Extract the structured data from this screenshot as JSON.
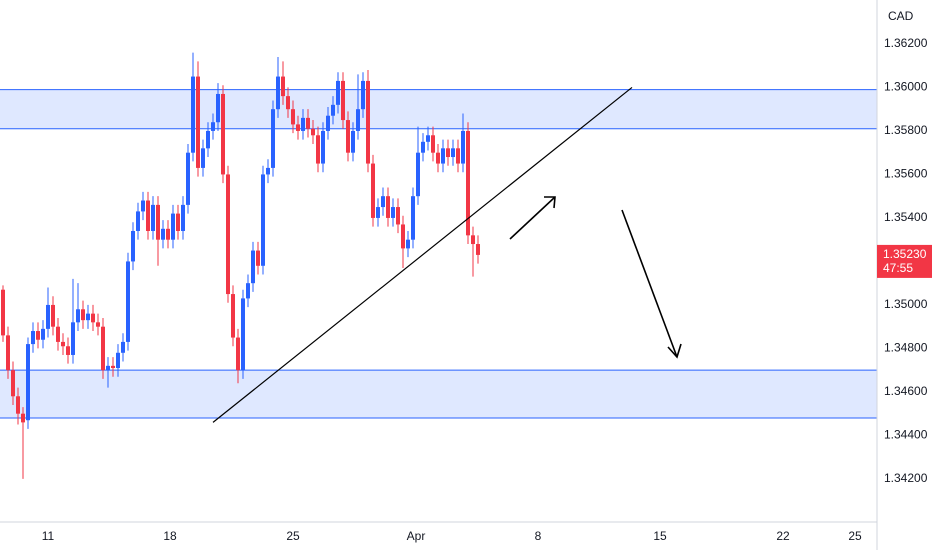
{
  "chart_data": {
    "type": "candlestick",
    "currency": "CAD",
    "up_color": "#2962ff",
    "down_color": "#f23645",
    "zone_color": "#2962ff",
    "xlim": [
      -0.6,
      174.8
    ],
    "ylim": [
      1.34002,
      1.36402
    ],
    "grid": false,
    "xticks": [
      {
        "value": 9.0,
        "label": "11"
      },
      {
        "value": 33.4,
        "label": "18"
      },
      {
        "value": 58.0,
        "label": "25"
      },
      {
        "value": 82.6,
        "label": "Apr"
      },
      {
        "value": 107.0,
        "label": "8"
      },
      {
        "value": 131.4,
        "label": "15"
      },
      {
        "value": 156.0,
        "label": "22"
      },
      {
        "value": 170.4,
        "label": "25"
      }
    ],
    "yticks": [
      {
        "value": 1.362,
        "label": "1.36200"
      },
      {
        "value": 1.36,
        "label": "1.36000"
      },
      {
        "value": 1.358,
        "label": "1.35800"
      },
      {
        "value": 1.356,
        "label": "1.35600"
      },
      {
        "value": 1.354,
        "label": "1.35400"
      },
      {
        "value": 1.35,
        "label": "1.35000"
      },
      {
        "value": 1.348,
        "label": "1.34800"
      },
      {
        "value": 1.346,
        "label": "1.34600"
      },
      {
        "value": 1.344,
        "label": "1.34400"
      },
      {
        "value": 1.342,
        "label": "1.34200"
      }
    ],
    "last_price": {
      "value": 1.3523,
      "label": "1.35230"
    },
    "countdown": "47:55",
    "zones": [
      [
        1.3581,
        1.3599
      ],
      [
        1.3448,
        1.347
      ]
    ],
    "trendline": {
      "x": [
        42.0,
        125.8
      ],
      "y": [
        1.3446,
        1.36
      ]
    },
    "open": [
      1.3507,
      1.3486,
      1.347,
      1.3458,
      1.345,
      1.3447,
      1.3482,
      1.3488,
      1.3484,
      1.3489,
      1.35,
      1.349,
      1.3483,
      1.3481,
      1.3477,
      1.3492,
      1.3498,
      1.3493,
      1.3496,
      1.3492,
      1.349,
      1.347,
      1.3472,
      1.3471,
      1.3478,
      1.3483,
      1.352,
      1.3534,
      1.3543,
      1.3548,
      1.3534,
      1.3546,
      1.353,
      1.3535,
      1.353,
      1.3542,
      1.3534,
      1.3546,
      1.357,
      1.3605,
      1.3563,
      1.3572,
      1.358,
      1.3584,
      1.3597,
      1.356,
      1.3505,
      1.3485,
      1.347,
      1.3503,
      1.351,
      1.3525,
      1.3518,
      1.356,
      1.3563,
      1.359,
      1.3605,
      1.3596,
      1.359,
      1.3583,
      1.358,
      1.3586,
      1.3581,
      1.3578,
      1.3565,
      1.358,
      1.3587,
      1.3592,
      1.3603,
      1.3585,
      1.357,
      1.358,
      1.359,
      1.3603,
      1.3565,
      1.354,
      1.3545,
      1.355,
      1.354,
      1.3545,
      1.3537,
      1.3526,
      1.353,
      1.355,
      1.357,
      1.3575,
      1.3578,
      1.357,
      1.3565,
      1.3572,
      1.3568,
      1.3572,
      1.3565,
      1.358,
      1.3532,
      1.3528
    ],
    "high": [
      1.3509,
      1.349,
      1.3474,
      1.3462,
      1.3453,
      1.3485,
      1.3492,
      1.3492,
      1.3493,
      1.3508,
      1.3504,
      1.3494,
      1.3487,
      1.3485,
      1.3512,
      1.351,
      1.3502,
      1.35,
      1.35,
      1.3496,
      1.3494,
      1.3476,
      1.3476,
      1.3482,
      1.3487,
      1.3524,
      1.3538,
      1.3547,
      1.3552,
      1.3552,
      1.355,
      1.355,
      1.3539,
      1.3539,
      1.3546,
      1.3546,
      1.355,
      1.3574,
      1.3616,
      1.3612,
      1.3576,
      1.3584,
      1.3588,
      1.3602,
      1.3601,
      1.3564,
      1.3509,
      1.3489,
      1.3507,
      1.3514,
      1.3529,
      1.3529,
      1.3564,
      1.3567,
      1.3594,
      1.3614,
      1.3612,
      1.36,
      1.3594,
      1.3587,
      1.359,
      1.359,
      1.3585,
      1.3582,
      1.3584,
      1.3591,
      1.3596,
      1.3607,
      1.3607,
      1.3589,
      1.3584,
      1.3606,
      1.3607,
      1.3608,
      1.3569,
      1.3549,
      1.3554,
      1.3554,
      1.3549,
      1.3549,
      1.3541,
      1.3534,
      1.3554,
      1.3582,
      1.3579,
      1.3582,
      1.3582,
      1.3574,
      1.3576,
      1.3576,
      1.3576,
      1.3576,
      1.3588,
      1.3584,
      1.3536,
      1.3532
    ],
    "low": [
      1.3483,
      1.3466,
      1.3454,
      1.3445,
      1.342,
      1.3443,
      1.3478,
      1.348,
      1.348,
      1.3485,
      1.3486,
      1.3479,
      1.3477,
      1.3473,
      1.3473,
      1.3488,
      1.3489,
      1.3489,
      1.3488,
      1.3486,
      1.3466,
      1.3462,
      1.3467,
      1.3467,
      1.3474,
      1.3479,
      1.3516,
      1.353,
      1.3539,
      1.353,
      1.353,
      1.3518,
      1.3526,
      1.3526,
      1.3526,
      1.353,
      1.353,
      1.3542,
      1.3566,
      1.3559,
      1.3559,
      1.3568,
      1.3576,
      1.358,
      1.3556,
      1.3501,
      1.3481,
      1.3464,
      1.3466,
      1.3499,
      1.3506,
      1.3514,
      1.3514,
      1.3556,
      1.3559,
      1.3586,
      1.3592,
      1.3586,
      1.3579,
      1.3576,
      1.3576,
      1.3577,
      1.3574,
      1.3561,
      1.3561,
      1.3576,
      1.3583,
      1.3588,
      1.3581,
      1.3566,
      1.3566,
      1.3576,
      1.3586,
      1.3561,
      1.3536,
      1.3536,
      1.3541,
      1.3536,
      1.3536,
      1.3533,
      1.3517,
      1.3522,
      1.3526,
      1.3546,
      1.3566,
      1.3571,
      1.3566,
      1.3561,
      1.3561,
      1.3564,
      1.3564,
      1.3561,
      1.3561,
      1.3528,
      1.3513,
      1.3519
    ],
    "close": [
      1.3486,
      1.347,
      1.3458,
      1.345,
      1.3446,
      1.3482,
      1.3488,
      1.3484,
      1.3489,
      1.35,
      1.349,
      1.3483,
      1.3481,
      1.3477,
      1.3492,
      1.3498,
      1.3493,
      1.3496,
      1.3492,
      1.349,
      1.347,
      1.3472,
      1.3471,
      1.3478,
      1.3483,
      1.352,
      1.3534,
      1.3543,
      1.3548,
      1.3534,
      1.3546,
      1.353,
      1.3535,
      1.353,
      1.3542,
      1.3534,
      1.3546,
      1.357,
      1.3605,
      1.3563,
      1.3572,
      1.358,
      1.3584,
      1.3597,
      1.356,
      1.3505,
      1.3485,
      1.347,
      1.3503,
      1.351,
      1.3525,
      1.3518,
      1.356,
      1.3563,
      1.359,
      1.3605,
      1.3596,
      1.359,
      1.3583,
      1.358,
      1.3586,
      1.3581,
      1.3578,
      1.3565,
      1.358,
      1.3587,
      1.3592,
      1.3603,
      1.3585,
      1.357,
      1.358,
      1.359,
      1.3603,
      1.3565,
      1.354,
      1.3545,
      1.355,
      1.354,
      1.3545,
      1.3537,
      1.3526,
      1.353,
      1.355,
      1.357,
      1.3575,
      1.3578,
      1.357,
      1.3565,
      1.3572,
      1.3568,
      1.3572,
      1.3565,
      1.358,
      1.3532,
      1.3528,
      1.3523
    ]
  }
}
